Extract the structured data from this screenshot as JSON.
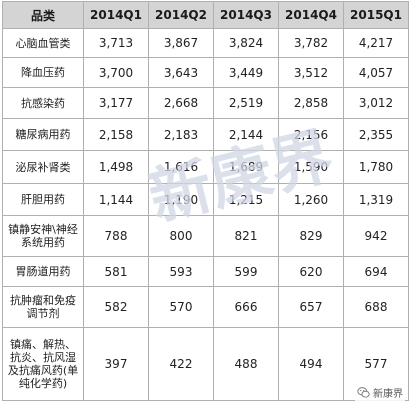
{
  "table": {
    "headers": [
      "品类",
      "2014Q1",
      "2014Q2",
      "2014Q3",
      "2014Q4",
      "2015Q1"
    ],
    "rows": [
      {
        "category": "心脑血管类",
        "values": [
          "3,713",
          "3,867",
          "3,824",
          "3,782",
          "4,217"
        ]
      },
      {
        "category": "降血压药",
        "values": [
          "3,700",
          "3,643",
          "3,449",
          "3,512",
          "4,057"
        ]
      },
      {
        "category": "抗感染药",
        "values": [
          "3,177",
          "2,668",
          "2,519",
          "2,858",
          "3,012"
        ]
      },
      {
        "category": "糖尿病用药",
        "values": [
          "2,158",
          "2,183",
          "2,144",
          "2,156",
          "2,355"
        ]
      },
      {
        "category": "泌尿补肾类",
        "values": [
          "1,498",
          "1,616",
          "1,689",
          "1,590",
          "1,780"
        ]
      },
      {
        "category": "肝胆用药",
        "values": [
          "1,144",
          "1,190",
          "1,215",
          "1,260",
          "1,319"
        ]
      },
      {
        "category": "镇静安神\\神经\n系统用药",
        "values": [
          "788",
          "800",
          "821",
          "829",
          "942"
        ]
      },
      {
        "category": "胃肠道用药",
        "values": [
          "581",
          "593",
          "599",
          "620",
          "694"
        ]
      },
      {
        "category": "抗肿瘤和免疫\n调节剂",
        "values": [
          "582",
          "570",
          "666",
          "657",
          "688"
        ]
      },
      {
        "category": "镇痛、解热、\n抗炎、抗风湿\n及抗痛风药(单\n纯化学药)",
        "values": [
          "397",
          "422",
          "488",
          "494",
          "577"
        ]
      }
    ]
  },
  "watermark": {
    "text": "新康界",
    "color": "#cfd6e4"
  },
  "brand": {
    "name": "新康界",
    "icon": "wechat-icon"
  },
  "colors": {
    "header_bg": "#d4d4d4",
    "border": "#b0b0b0"
  }
}
